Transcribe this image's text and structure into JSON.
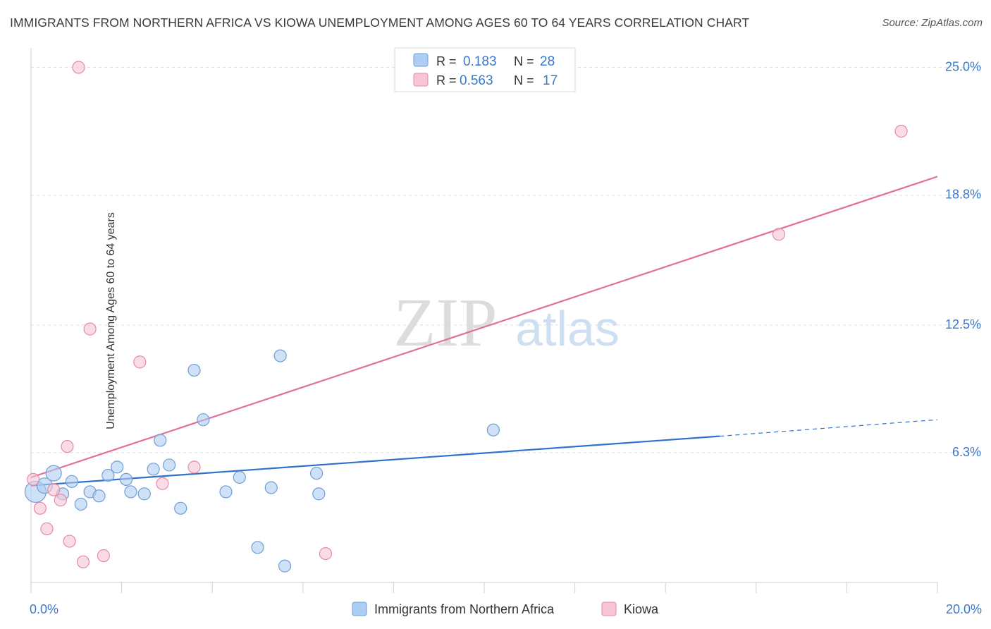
{
  "title": "IMMIGRANTS FROM NORTHERN AFRICA VS KIOWA UNEMPLOYMENT AMONG AGES 60 TO 64 YEARS CORRELATION CHART",
  "source": "Source: ZipAtlas.com",
  "watermark": {
    "zip": "ZIP",
    "atlas": "atlas"
  },
  "legend_top": {
    "r_label": "R =",
    "n_label": "N =",
    "rows": [
      {
        "r": "0.183",
        "n": "28"
      },
      {
        "r": "0.563",
        "n": "17"
      }
    ]
  },
  "chart_data": {
    "type": "scatter",
    "xlabel": "",
    "ylabel": "Unemployment Among Ages 60 to 64 years",
    "xlim": [
      0,
      20
    ],
    "ylim": [
      0,
      25.6
    ],
    "x_tick_labels": [
      {
        "value": 0,
        "label": "0.0%"
      },
      {
        "value": 20,
        "label": "20.0%"
      }
    ],
    "y_tick_labels": [
      {
        "value": 6.3,
        "label": "6.3%"
      },
      {
        "value": 12.5,
        "label": "12.5%"
      },
      {
        "value": 18.8,
        "label": "18.8%"
      },
      {
        "value": 25.0,
        "label": "25.0%"
      }
    ],
    "grid": "horizontal dashed",
    "legend_position": "bottom-center",
    "series": [
      {
        "name": "Immigrants from Northern Africa",
        "color": "#aecdf2",
        "stroke": "#6f9fd6",
        "line_color": "#2f72cc",
        "r": 0.183,
        "n": 28,
        "trend": {
          "x0": 0,
          "y0": 4.7,
          "x1": 15.2,
          "y1": 7.1,
          "dash_x1": 20,
          "dash_y1": 7.9
        },
        "points": [
          [
            0.1,
            4.4
          ],
          [
            0.3,
            4.7
          ],
          [
            0.5,
            5.3
          ],
          [
            0.7,
            4.3
          ],
          [
            0.9,
            4.9
          ],
          [
            1.1,
            3.8
          ],
          [
            1.3,
            4.4
          ],
          [
            1.5,
            4.2
          ],
          [
            1.7,
            5.2
          ],
          [
            1.9,
            5.6
          ],
          [
            2.1,
            5.0
          ],
          [
            2.2,
            4.4
          ],
          [
            2.5,
            4.3
          ],
          [
            2.7,
            5.5
          ],
          [
            2.85,
            6.9
          ],
          [
            3.05,
            5.7
          ],
          [
            3.3,
            3.6
          ],
          [
            3.6,
            10.3
          ],
          [
            3.8,
            7.9
          ],
          [
            4.3,
            4.4
          ],
          [
            4.6,
            5.1
          ],
          [
            5.0,
            1.7
          ],
          [
            5.3,
            4.6
          ],
          [
            5.5,
            11.0
          ],
          [
            5.6,
            0.8
          ],
          [
            6.3,
            5.3
          ],
          [
            6.35,
            4.3
          ],
          [
            10.2,
            7.4
          ]
        ]
      },
      {
        "name": "Kiowa",
        "color": "#f7c5d5",
        "stroke": "#e58aa8",
        "line_color": "#e0709a",
        "r": 0.563,
        "n": 17,
        "trend": {
          "x0": 0,
          "y0": 5.1,
          "x1": 20,
          "y1": 19.7
        },
        "points": [
          [
            0.05,
            5.0
          ],
          [
            0.2,
            3.6
          ],
          [
            0.35,
            2.6
          ],
          [
            0.5,
            4.5
          ],
          [
            0.65,
            4.0
          ],
          [
            0.8,
            6.6
          ],
          [
            0.85,
            2.0
          ],
          [
            1.05,
            25.0
          ],
          [
            1.15,
            1.0
          ],
          [
            1.3,
            12.3
          ],
          [
            1.6,
            1.3
          ],
          [
            2.4,
            10.7
          ],
          [
            2.9,
            4.8
          ],
          [
            3.6,
            5.6
          ],
          [
            6.5,
            1.4
          ],
          [
            16.5,
            16.9
          ],
          [
            19.2,
            21.9
          ]
        ]
      }
    ]
  }
}
